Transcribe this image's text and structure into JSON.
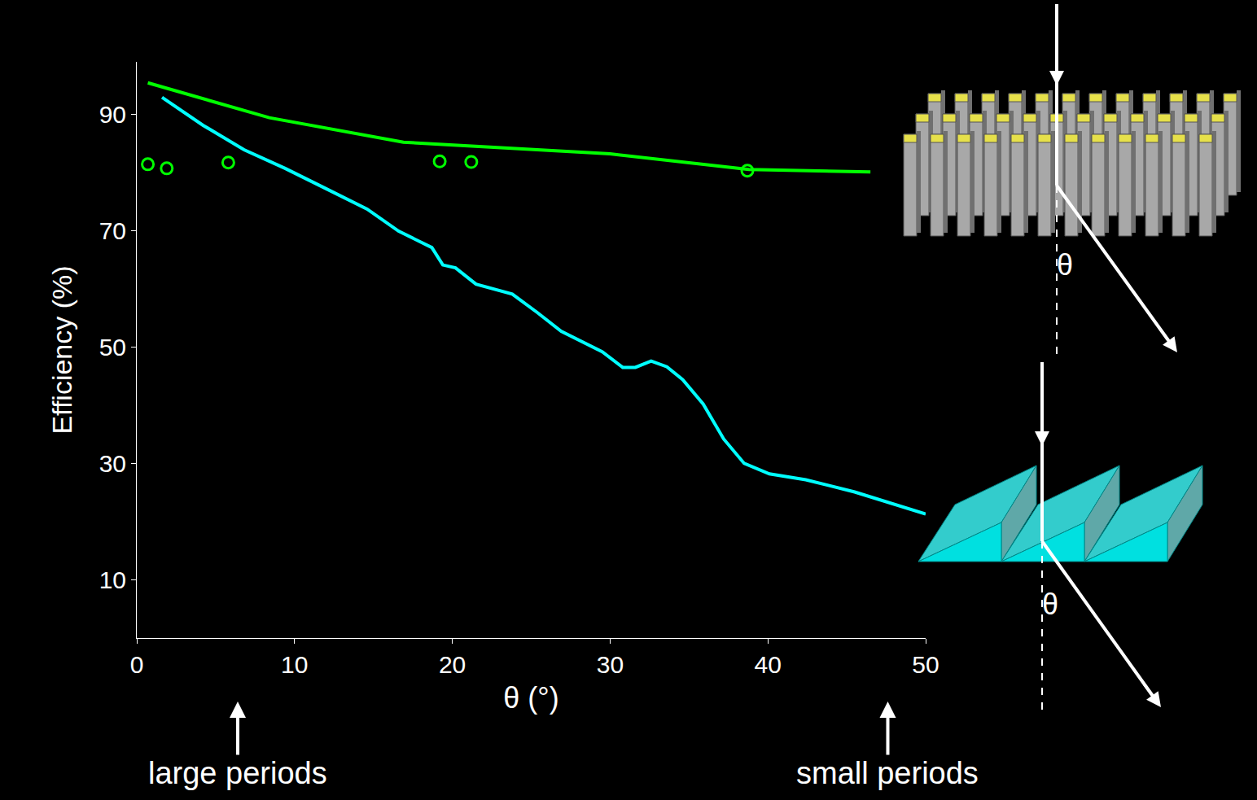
{
  "chart_data": {
    "type": "line",
    "xlabel": "θ (°)",
    "ylabel": "Efficiency (%)",
    "xlim": [
      0,
      50
    ],
    "ylim": [
      0,
      99
    ],
    "xticks": [
      0,
      10,
      20,
      30,
      40,
      50
    ],
    "yticks": [
      10,
      30,
      50,
      70,
      90
    ],
    "grid": false,
    "series": [
      {
        "type": "line",
        "color": "#00ff00",
        "line_style": "solid",
        "x": [
          0.7,
          8.4,
          16.9,
          30.0,
          38.8,
          46.5
        ],
        "values": [
          95.4,
          89.4,
          85.2,
          83.2,
          80.5,
          80.1
        ]
      },
      {
        "type": "scatter",
        "color": "#00ff00",
        "marker": "open circle",
        "x": [
          0.7,
          1.9,
          5.8,
          19.2,
          21.2,
          38.7
        ],
        "values": [
          81.4,
          80.7,
          81.7,
          81.9,
          81.8,
          80.3
        ]
      },
      {
        "type": "line",
        "color": "#00ffff",
        "line_style": "solid",
        "x": [
          1.6,
          4.2,
          6.8,
          9.4,
          12.0,
          14.6,
          16.6,
          18.7,
          19.4,
          20.2,
          21.5,
          23.8,
          25.4,
          26.9,
          29.5,
          30.8,
          31.6,
          32.6,
          33.6,
          34.6,
          35.9,
          37.2,
          38.5,
          40.1,
          42.4,
          45.5,
          50.0
        ],
        "values": [
          92.9,
          88.1,
          83.9,
          80.7,
          77.2,
          73.7,
          69.9,
          67.1,
          64.1,
          63.6,
          60.8,
          59.1,
          55.9,
          52.7,
          49.2,
          46.5,
          46.5,
          47.6,
          46.6,
          44.4,
          40.2,
          34.2,
          30.0,
          28.2,
          27.2,
          25.1,
          21.3
        ]
      }
    ],
    "annotations": [
      {
        "text": "large periods",
        "x": 6.4
      },
      {
        "text": "small periods",
        "x": 47.6
      },
      {
        "text": "θ"
      },
      {
        "text": "θ"
      }
    ]
  }
}
